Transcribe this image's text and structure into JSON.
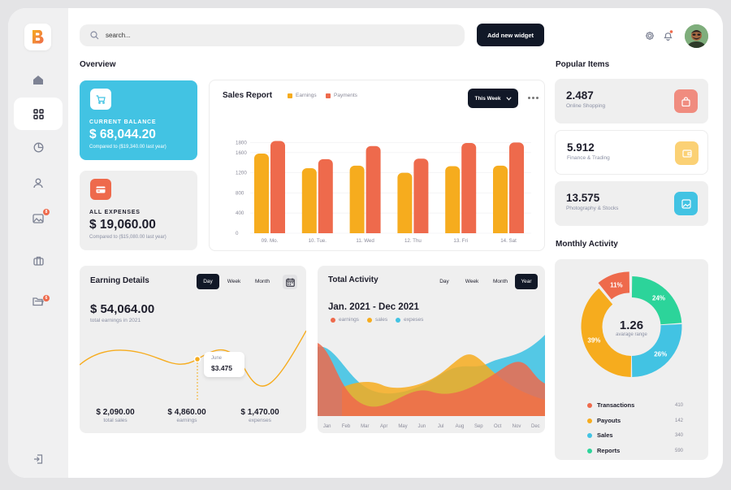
{
  "logo": {
    "letter": "B"
  },
  "sidebar": {
    "items": [
      {
        "name": "home",
        "icon": "home-icon"
      },
      {
        "name": "dashboard",
        "icon": "grid-icon",
        "active": true
      },
      {
        "name": "analytics",
        "icon": "pie-chart-icon"
      },
      {
        "name": "profile",
        "icon": "user-icon"
      },
      {
        "name": "gallery",
        "icon": "image-icon",
        "badge": "8"
      },
      {
        "name": "briefcase",
        "icon": "briefcase-icon"
      },
      {
        "name": "folders",
        "icon": "folder-icon",
        "badge": "6"
      },
      {
        "name": "logout",
        "icon": "logout-icon"
      }
    ]
  },
  "search": {
    "placeholder": "search..."
  },
  "header": {
    "add_widget": "Add new widget"
  },
  "overview": {
    "title": "Overview",
    "balance": {
      "label": "CURRENT BALANCE",
      "amount": "$ 68,044.20",
      "compare": "Compared to ($19,340.00 last year)"
    },
    "expenses": {
      "label": "ALL EXPENSES",
      "amount": "$ 19,060.00",
      "compare": "Compared to ($15,080.00 last year)"
    }
  },
  "sales_report": {
    "title": "Sales Report",
    "legend": [
      "Earnings",
      "Payments"
    ],
    "period": "This Week"
  },
  "chart_data": {
    "type": "bar",
    "categories": [
      "09. Mo.",
      "10. Tue.",
      "11. Wed",
      "12. Thu",
      "13. Fri",
      "14. Sat"
    ],
    "series": [
      {
        "name": "Earnings",
        "color": "#f6ac1e",
        "values": [
          1580,
          1290,
          1340,
          1200,
          1330,
          1340
        ]
      },
      {
        "name": "Payments",
        "color": "#ee6a4c",
        "values": [
          1830,
          1470,
          1730,
          1480,
          1790,
          1800
        ]
      }
    ],
    "yticks": [
      "1800",
      "1600",
      "1200",
      "800",
      "400",
      "0"
    ],
    "ylim": [
      0,
      2000
    ]
  },
  "popular": {
    "title": "Popular Items",
    "items": [
      {
        "value": "2.487",
        "label": "Online Shopping",
        "color": "#f08c7f",
        "bg": "#efefef",
        "icon": "bag-icon"
      },
      {
        "value": "5.912",
        "label": "Finance & Trading",
        "color": "#fbd175",
        "bg": "#ffffff",
        "icon": "wallet-icon"
      },
      {
        "value": "13.575",
        "label": "Photography & Stocks",
        "color": "#42c3e3",
        "bg": "#efefef",
        "icon": "picture-icon"
      }
    ]
  },
  "earning": {
    "title": "Earning Details",
    "tabs": [
      "Day",
      "Week",
      "Month"
    ],
    "amount": "$ 54,064.00",
    "sub": "total earnings in 2021",
    "tooltip": {
      "month": "June",
      "value": "$3.475"
    },
    "stats": [
      {
        "value": "$ 2,090.00",
        "label": "total sales"
      },
      {
        "value": "$ 4,860.00",
        "label": "earnings"
      },
      {
        "value": "$ 1,470.00",
        "label": "expenses"
      }
    ]
  },
  "activity": {
    "title": "Total Activity",
    "tabs": [
      "Day",
      "Week",
      "Month",
      "Year"
    ],
    "range": "Jan. 2021 - Dec 2021",
    "legend": [
      {
        "name": "earnings",
        "color": "#ee6a4c"
      },
      {
        "name": "sales",
        "color": "#f6ac1e"
      },
      {
        "name": "expeses",
        "color": "#42c3e3"
      }
    ],
    "months": [
      "Jan",
      "Feb",
      "Mar",
      "Apr",
      "May",
      "Jun",
      "Jul",
      "Aug",
      "Sep",
      "Oct",
      "Nov",
      "Dec"
    ]
  },
  "monthly": {
    "title": "Monthly Activity",
    "center_value": "1.26",
    "center_label": "avarage range",
    "slices": [
      {
        "name": "Transactions",
        "percent": 11,
        "label": "11%",
        "color": "#ee6a4c",
        "count": "410"
      },
      {
        "name": "Payouts",
        "percent": 39,
        "label": "39%",
        "color": "#f6ac1e",
        "count": "142"
      },
      {
        "name": "Sales",
        "percent": 26,
        "label": "26%",
        "color": "#42c3e3",
        "count": "340"
      },
      {
        "name": "Reports",
        "percent": 24,
        "label": "24%",
        "color": "#2cd49a",
        "count": "590"
      }
    ]
  }
}
